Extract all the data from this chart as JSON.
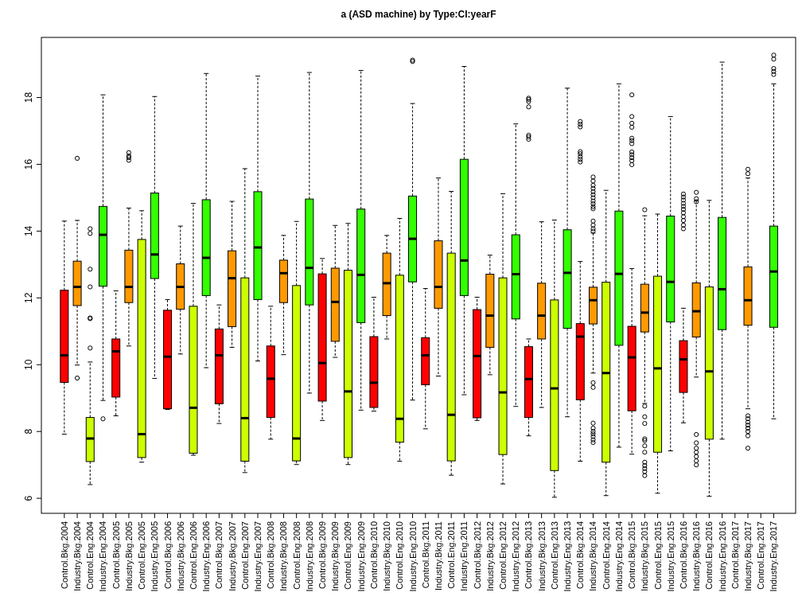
{
  "chart_data": {
    "type": "box",
    "title": "a (ASD machine) by Type:CI:yearF",
    "categories": [
      "Control.Bkg.2004",
      "Industry.Bkg.2004",
      "Control.Eng.2004",
      "Industry.Eng.2004",
      "Control.Bkg.2005",
      "Industry.Bkg.2005",
      "Control.Eng.2005",
      "Industry.Eng.2005",
      "Control.Bkg.2006",
      "Industry.Bkg.2006",
      "Control.Eng.2006",
      "Industry.Eng.2006",
      "Control.Bkg.2007",
      "Industry.Bkg.2007",
      "Control.Eng.2007",
      "Industry.Eng.2007",
      "Control.Bkg.2008",
      "Industry.Bkg.2008",
      "Control.Eng.2008",
      "Industry.Eng.2008",
      "Control.Bkg.2009",
      "Industry.Bkg.2009",
      "Control.Eng.2009",
      "Industry.Eng.2009",
      "Control.Bkg.2010",
      "Industry.Bkg.2010",
      "Control.Eng.2010",
      "Industry.Eng.2010",
      "Control.Bkg.2011",
      "Industry.Bkg.2011",
      "Control.Eng.2011",
      "Industry.Eng.2011",
      "Control.Bkg.2012",
      "Industry.Bkg.2012",
      "Control.Eng.2012",
      "Industry.Eng.2012",
      "Control.Bkg.2013",
      "Industry.Bkg.2013",
      "Control.Eng.2013",
      "Industry.Eng.2013",
      "Control.Bkg.2014",
      "Industry.Bkg.2014",
      "Control.Eng.2014",
      "Industry.Eng.2014",
      "Control.Bkg.2015",
      "Industry.Bkg.2015",
      "Control.Eng.2015",
      "Industry.Eng.2015",
      "Control.Bkg.2016",
      "Industry.Bkg.2016",
      "Control.Eng.2016",
      "Industry.Eng.2016",
      "Control.Bkg.2017",
      "Industry.Bkg.2017",
      "Control.Eng.2017",
      "Industry.Eng.2017"
    ],
    "colors": [
      "#ff0000",
      "#ff9900",
      "#ccff00",
      "#33ff00",
      "#ff0000",
      "#ff9900",
      "#ccff00",
      "#33ff00",
      "#ff0000",
      "#ff9900",
      "#ccff00",
      "#33ff00",
      "#ff0000",
      "#ff9900",
      "#ccff00",
      "#33ff00",
      "#ff0000",
      "#ff9900",
      "#ccff00",
      "#33ff00",
      "#ff0000",
      "#ff9900",
      "#ccff00",
      "#33ff00",
      "#ff0000",
      "#ff9900",
      "#ccff00",
      "#33ff00",
      "#ff0000",
      "#ff9900",
      "#ccff00",
      "#33ff00",
      "#ff0000",
      "#ff9900",
      "#ccff00",
      "#33ff00",
      "#ff0000",
      "#ff9900",
      "#ccff00",
      "#33ff00",
      "#ff0000",
      "#ff9900",
      "#ccff00",
      "#33ff00",
      "#ff0000",
      "#ff9900",
      "#ccff00",
      "#33ff00",
      "#ff0000",
      "#ff9900",
      "#ccff00",
      "#33ff00",
      null,
      "#ff9900",
      null,
      "#33ff00"
    ],
    "boxes": [
      {
        "low": 7.92,
        "q1": 9.47,
        "median": 10.28,
        "q3": 12.23,
        "high": 14.3
      },
      {
        "low": 9.99,
        "q1": 11.77,
        "median": 12.33,
        "q3": 13.1,
        "high": 14.32,
        "outliers": [
          16.18,
          9.6
        ]
      },
      {
        "low": 6.41,
        "q1": 7.1,
        "median": 7.79,
        "q3": 8.42,
        "high": 10.08,
        "outliers": [
          14.07,
          13.93,
          12.86,
          12.33,
          11.4,
          11.38,
          10.5
        ]
      },
      {
        "low": 8.93,
        "q1": 12.35,
        "median": 13.89,
        "q3": 14.74,
        "high": 18.08,
        "outliers": [
          8.38
        ]
      },
      {
        "low": 8.47,
        "q1": 9.03,
        "median": 10.4,
        "q3": 10.77,
        "high": 12.21
      },
      {
        "low": 10.56,
        "q1": 11.86,
        "median": 12.33,
        "q3": 13.43,
        "high": 14.69,
        "outliers": [
          16.35,
          16.25,
          16.2,
          16.12
        ]
      },
      {
        "low": 7.08,
        "q1": 7.22,
        "median": 7.92,
        "q3": 13.75,
        "high": 14.61
      },
      {
        "low": 9.59,
        "q1": 12.58,
        "median": 13.3,
        "q3": 15.14,
        "high": 18.03
      },
      {
        "low": 8.66,
        "q1": 8.68,
        "median": 10.24,
        "q3": 11.63,
        "high": 11.95
      },
      {
        "low": 10.32,
        "q1": 11.66,
        "median": 12.33,
        "q3": 13.02,
        "high": 14.15
      },
      {
        "low": 7.29,
        "q1": 7.35,
        "median": 8.71,
        "q3": 11.75,
        "high": 14.83
      },
      {
        "low": 9.91,
        "q1": 12.07,
        "median": 13.2,
        "q3": 14.94,
        "high": 18.72
      },
      {
        "low": 8.24,
        "q1": 8.83,
        "median": 10.28,
        "q3": 11.07,
        "high": 11.79
      },
      {
        "low": 10.52,
        "q1": 11.14,
        "median": 12.59,
        "q3": 13.41,
        "high": 14.89
      },
      {
        "low": 6.77,
        "q1": 7.11,
        "median": 8.4,
        "q3": 12.6,
        "high": 15.87
      },
      {
        "low": 10.11,
        "q1": 11.95,
        "median": 13.51,
        "q3": 15.18,
        "high": 18.64
      },
      {
        "low": 7.77,
        "q1": 8.42,
        "median": 9.58,
        "q3": 10.56,
        "high": 11.75
      },
      {
        "low": 10.3,
        "q1": 11.86,
        "median": 12.74,
        "q3": 13.13,
        "high": 13.87
      },
      {
        "low": 7.01,
        "q1": 7.12,
        "median": 7.79,
        "q3": 12.37,
        "high": 14.29
      },
      {
        "low": 9.15,
        "q1": 11.79,
        "median": 12.9,
        "q3": 14.96,
        "high": 18.75
      },
      {
        "low": 8.33,
        "q1": 8.91,
        "median": 10.05,
        "q3": 12.72,
        "high": 13.18
      },
      {
        "low": 10.22,
        "q1": 10.7,
        "median": 11.88,
        "q3": 12.89,
        "high": 14.17
      },
      {
        "low": 7.01,
        "q1": 7.22,
        "median": 9.2,
        "q3": 12.83,
        "high": 14.23
      },
      {
        "low": 8.64,
        "q1": 11.26,
        "median": 12.69,
        "q3": 14.66,
        "high": 18.81
      },
      {
        "low": 8.61,
        "q1": 8.72,
        "median": 9.46,
        "q3": 10.84,
        "high": 12.02
      },
      {
        "low": 10.77,
        "q1": 11.47,
        "median": 12.44,
        "q3": 13.34,
        "high": 13.87
      },
      {
        "low": 7.11,
        "q1": 7.68,
        "median": 8.38,
        "q3": 12.68,
        "high": 14.38
      },
      {
        "low": 8.94,
        "q1": 12.48,
        "median": 13.77,
        "q3": 15.05,
        "high": 17.82,
        "outliers": [
          19.12,
          19.08
        ]
      },
      {
        "low": 8.08,
        "q1": 9.4,
        "median": 10.28,
        "q3": 10.81,
        "high": 12.28
      },
      {
        "low": 9.66,
        "q1": 11.69,
        "median": 12.33,
        "q3": 13.71,
        "high": 15.59
      },
      {
        "low": 6.69,
        "q1": 7.12,
        "median": 8.5,
        "q3": 13.34,
        "high": 15.19
      },
      {
        "low": 9.1,
        "q1": 12.07,
        "median": 13.12,
        "q3": 16.15,
        "high": 18.93
      },
      {
        "low": 8.33,
        "q1": 8.41,
        "median": 10.26,
        "q3": 11.65,
        "high": 12.02
      },
      {
        "low": 9.7,
        "q1": 10.52,
        "median": 11.47,
        "q3": 12.71,
        "high": 13.28
      },
      {
        "low": 6.43,
        "q1": 7.31,
        "median": 9.17,
        "q3": 12.6,
        "high": 15.12
      },
      {
        "low": 8.75,
        "q1": 11.37,
        "median": 12.71,
        "q3": 13.89,
        "high": 17.21
      },
      {
        "low": 7.87,
        "q1": 8.42,
        "median": 9.57,
        "q3": 10.54,
        "high": 10.77,
        "outliers": [
          17.98,
          17.94,
          17.88,
          17.72,
          16.87,
          16.82,
          16.75
        ]
      },
      {
        "low": 8.72,
        "q1": 10.77,
        "median": 11.47,
        "q3": 12.44,
        "high": 14.28
      },
      {
        "low": 6.03,
        "q1": 6.83,
        "median": 9.29,
        "q3": 11.94,
        "high": 14.33
      },
      {
        "low": 8.44,
        "q1": 11.09,
        "median": 12.75,
        "q3": 14.04,
        "high": 18.28
      },
      {
        "low": 7.11,
        "q1": 8.95,
        "median": 10.84,
        "q3": 11.23,
        "high": 13.09,
        "outliers": [
          17.28,
          17.2,
          17.12,
          16.38,
          16.32,
          16.23,
          16.15,
          16.07
        ]
      },
      {
        "low": 9.75,
        "q1": 11.22,
        "median": 11.93,
        "q3": 12.32,
        "high": 13.94,
        "outliers": [
          15.62,
          15.5,
          15.37,
          15.28,
          15.18,
          15.09,
          15.0,
          14.9,
          14.82,
          14.73,
          14.67,
          14.3,
          14.18,
          14.07,
          14.0,
          9.46,
          9.32,
          8.25,
          8.1,
          8.0,
          7.93,
          7.85,
          7.75,
          7.67
        ]
      },
      {
        "low": 6.08,
        "q1": 7.08,
        "median": 9.75,
        "q3": 12.47,
        "high": 15.22
      },
      {
        "low": 7.53,
        "q1": 10.58,
        "median": 12.72,
        "q3": 14.6,
        "high": 18.41
      },
      {
        "low": 7.32,
        "q1": 8.62,
        "median": 10.22,
        "q3": 11.15,
        "high": 12.88,
        "outliers": [
          18.08,
          17.43,
          17.23,
          17.11,
          16.78,
          16.71,
          16.62,
          16.37,
          16.29,
          16.2,
          16.11,
          15.99
        ]
      },
      {
        "low": 8.84,
        "q1": 10.98,
        "median": 11.56,
        "q3": 12.41,
        "high": 14.46,
        "outliers": [
          14.64,
          8.76,
          8.44,
          8.24,
          7.78,
          7.73,
          7.57,
          7.38,
          7.08,
          6.98,
          6.89,
          6.8,
          6.68
        ]
      },
      {
        "low": 6.15,
        "q1": 7.38,
        "median": 9.89,
        "q3": 12.65,
        "high": 14.51
      },
      {
        "low": 7.42,
        "q1": 11.28,
        "median": 12.48,
        "q3": 14.45,
        "high": 17.43
      },
      {
        "low": 8.26,
        "q1": 9.17,
        "median": 10.16,
        "q3": 10.72,
        "high": 11.69,
        "outliers": [
          15.11,
          15.02,
          14.93,
          14.83,
          14.74,
          14.65,
          14.55,
          14.43,
          14.32,
          14.18,
          14.07
        ]
      },
      {
        "low": 9.63,
        "q1": 10.83,
        "median": 11.6,
        "q3": 12.45,
        "high": 14.91,
        "outliers": [
          15.16,
          14.97,
          14.88,
          7.91,
          7.66,
          7.5,
          7.38,
          7.25,
          7.12,
          7.0
        ]
      },
      {
        "low": 6.06,
        "q1": 7.77,
        "median": 9.8,
        "q3": 12.33,
        "high": 14.92
      },
      {
        "low": 7.77,
        "q1": 11.05,
        "median": 12.26,
        "q3": 14.41,
        "high": 19.06
      },
      null,
      {
        "low": 8.68,
        "q1": 11.18,
        "median": 11.93,
        "q3": 12.93,
        "high": 15.59,
        "outliers": [
          15.85,
          15.72,
          8.47,
          8.38,
          8.28,
          8.19,
          8.1,
          8.0,
          7.87,
          7.5
        ]
      },
      null,
      {
        "low": 8.38,
        "q1": 11.12,
        "median": 12.79,
        "q3": 14.15,
        "high": 18.41,
        "outliers": [
          19.27,
          19.15,
          18.87,
          18.78,
          18.69
        ]
      }
    ],
    "ylim": [
      5.55,
      19.8
    ],
    "yticks": [
      6,
      8,
      10,
      12,
      14,
      16,
      18
    ]
  }
}
